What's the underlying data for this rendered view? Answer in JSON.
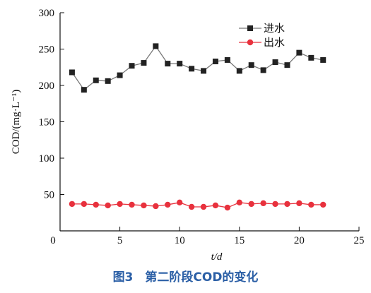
{
  "caption": "图3　第二阶段COD的变化",
  "chart_data": {
    "type": "line",
    "xlabel": "t/d",
    "ylabel": "COD/(mg·L⁻¹)",
    "xlim": [
      0,
      25
    ],
    "ylim": [
      0,
      300
    ],
    "xticks": [
      0,
      5,
      10,
      15,
      20,
      25
    ],
    "yticks": [
      50,
      100,
      150,
      200,
      250,
      300
    ],
    "x_tick_labels": [
      "0",
      "5",
      "10",
      "15",
      "20",
      "25"
    ],
    "y_tick_labels": [
      "50",
      "100",
      "150",
      "200",
      "250",
      "300"
    ],
    "grid": false,
    "legend_position": "top-right",
    "x": [
      1,
      2,
      3,
      4,
      5,
      6,
      7,
      8,
      9,
      10,
      11,
      12,
      13,
      14,
      15,
      16,
      17,
      18,
      19,
      20,
      21,
      22
    ],
    "series": [
      {
        "name": "进水",
        "marker": "square",
        "color": "#222222",
        "line_color": "#777777",
        "values": [
          218,
          194,
          207,
          206,
          214,
          227,
          231,
          254,
          230,
          230,
          223,
          220,
          233,
          235,
          220,
          228,
          221,
          232,
          228,
          245,
          238,
          235
        ]
      },
      {
        "name": "出水",
        "marker": "circle",
        "color": "#e8313d",
        "line_color": "#e8313d",
        "values": [
          37,
          37,
          36,
          35,
          37,
          36,
          35,
          34,
          36,
          39,
          33,
          33,
          35,
          32,
          39,
          37,
          38,
          37,
          37,
          38,
          36,
          36
        ]
      }
    ]
  }
}
